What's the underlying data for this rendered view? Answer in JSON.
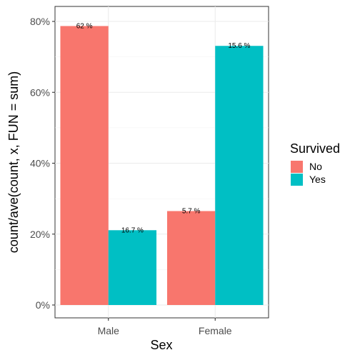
{
  "chart_data": {
    "type": "bar",
    "xlabel": "Sex",
    "ylabel": "count/ave(count, x, FUN = sum)",
    "categories": [
      "Male",
      "Female"
    ],
    "series": [
      {
        "name": "No",
        "color": "#F8766D",
        "values": [
          0.787,
          0.265
        ],
        "labels": [
          "62 %",
          "5.7 %"
        ]
      },
      {
        "name": "Yes",
        "color": "#00BFC4",
        "values": [
          0.211,
          0.731
        ],
        "labels": [
          "16.7 %",
          "15.6 %"
        ]
      }
    ],
    "ylim": [
      0,
      0.8
    ],
    "yticks": [
      0,
      0.2,
      0.4,
      0.6,
      0.8
    ],
    "ytick_labels": [
      "0%",
      "20%",
      "40%",
      "60%",
      "80%"
    ],
    "grid": true,
    "legend": {
      "title": "Survived",
      "position": "right",
      "items": [
        "No",
        "Yes"
      ]
    }
  }
}
